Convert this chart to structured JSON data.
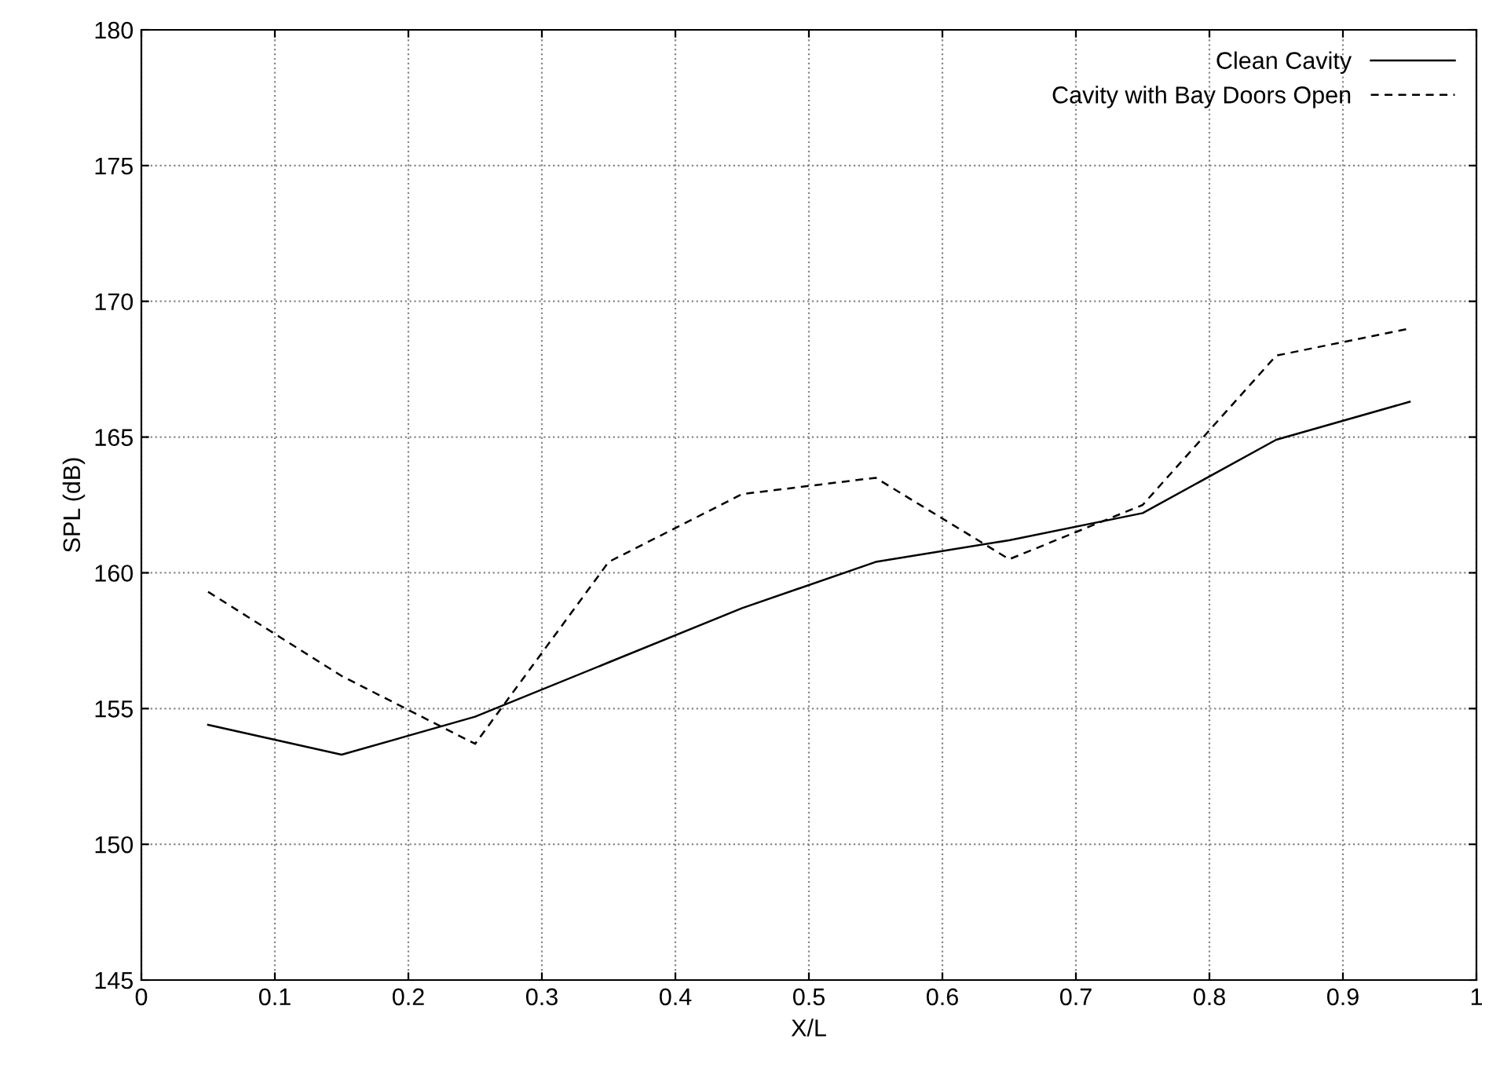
{
  "chart_data": {
    "type": "line",
    "xlabel": "X/L",
    "ylabel": "SPL (dB)",
    "x": [
      0.05,
      0.15,
      0.25,
      0.35,
      0.45,
      0.55,
      0.65,
      0.75,
      0.85,
      0.95
    ],
    "series": [
      {
        "name": "Clean Cavity",
        "color": "#000000",
        "line_style": "solid",
        "values": [
          154.4,
          153.3,
          154.7,
          156.7,
          158.7,
          160.4,
          161.2,
          162.2,
          164.9,
          166.3
        ]
      },
      {
        "name": "Cavity with Bay Doors Open",
        "color": "#000000",
        "line_style": "dashed",
        "values": [
          159.3,
          156.2,
          153.7,
          160.4,
          162.9,
          163.5,
          160.5,
          162.5,
          168.0,
          169.0
        ]
      }
    ],
    "xlim": [
      0,
      1
    ],
    "xticks": [
      0,
      0.1,
      0.2,
      0.3,
      0.4,
      0.5,
      0.6,
      0.7,
      0.8,
      0.9,
      1
    ],
    "ylim": [
      145,
      180
    ],
    "yticks": [
      145,
      150,
      155,
      160,
      165,
      170,
      175,
      180
    ],
    "grid": true,
    "legend": "top right",
    "marker": "none"
  }
}
